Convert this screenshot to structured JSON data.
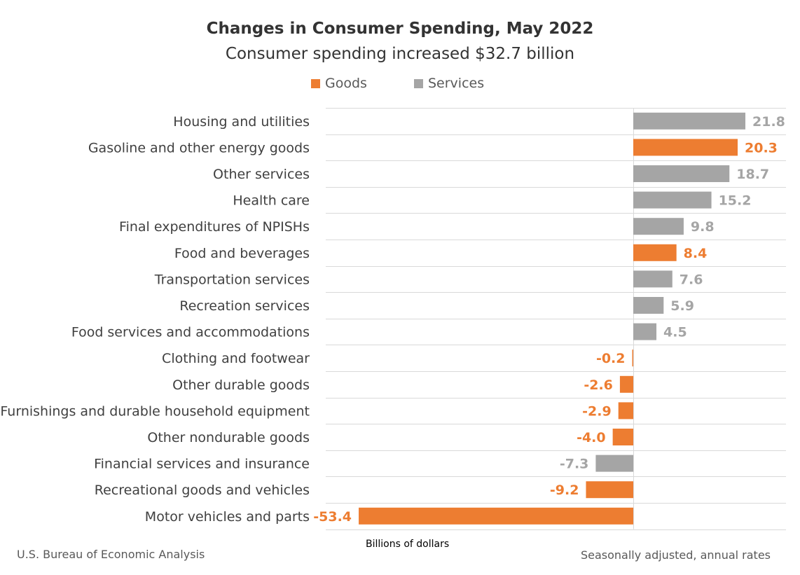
{
  "chart_data": {
    "type": "bar",
    "orientation": "horizontal",
    "title": "Changes in Consumer Spending, May 2022",
    "subtitle": "Consumer spending increased $32.7 billion",
    "xlabel": "Billions of dollars",
    "legend": {
      "placement": "top",
      "entries": [
        {
          "name": "Goods",
          "color": "#ED7D31"
        },
        {
          "name": "Services",
          "color": "#A5A5A5"
        }
      ]
    },
    "grid": "horizontal row separators",
    "xlim": [
      -60,
      30
    ],
    "categories": [
      "Housing and utilities",
      "Gasoline and other energy goods",
      "Other services",
      "Health care",
      "Final expenditures of NPISHs",
      "Food and beverages",
      "Transportation services",
      "Recreation services",
      "Food services and accommodations",
      "Clothing and footwear",
      "Other durable goods",
      "Furnishings and durable household equipment",
      "Other nondurable goods",
      "Financial services and insurance",
      "Recreational goods and vehicles",
      "Motor vehicles and parts"
    ],
    "values": [
      21.8,
      20.3,
      18.7,
      15.2,
      9.8,
      8.4,
      7.6,
      5.9,
      4.5,
      -0.2,
      -2.6,
      -2.9,
      -4.0,
      -7.3,
      -9.2,
      -53.4
    ],
    "labels": [
      "21.8",
      "20.3",
      "18.7",
      "15.2",
      "9.8",
      "8.4",
      "7.6",
      "5.9",
      "4.5",
      "-0.2",
      "-2.6",
      "-2.9",
      "-4.0",
      "-7.3",
      "-9.2",
      "-53.4"
    ],
    "series_of": [
      "Services",
      "Goods",
      "Services",
      "Services",
      "Services",
      "Goods",
      "Services",
      "Services",
      "Services",
      "Goods",
      "Goods",
      "Goods",
      "Goods",
      "Services",
      "Goods",
      "Goods"
    ]
  },
  "footer": {
    "source": "U.S. Bureau of Economic Analysis",
    "note": "Seasonally adjusted, annual rates"
  }
}
